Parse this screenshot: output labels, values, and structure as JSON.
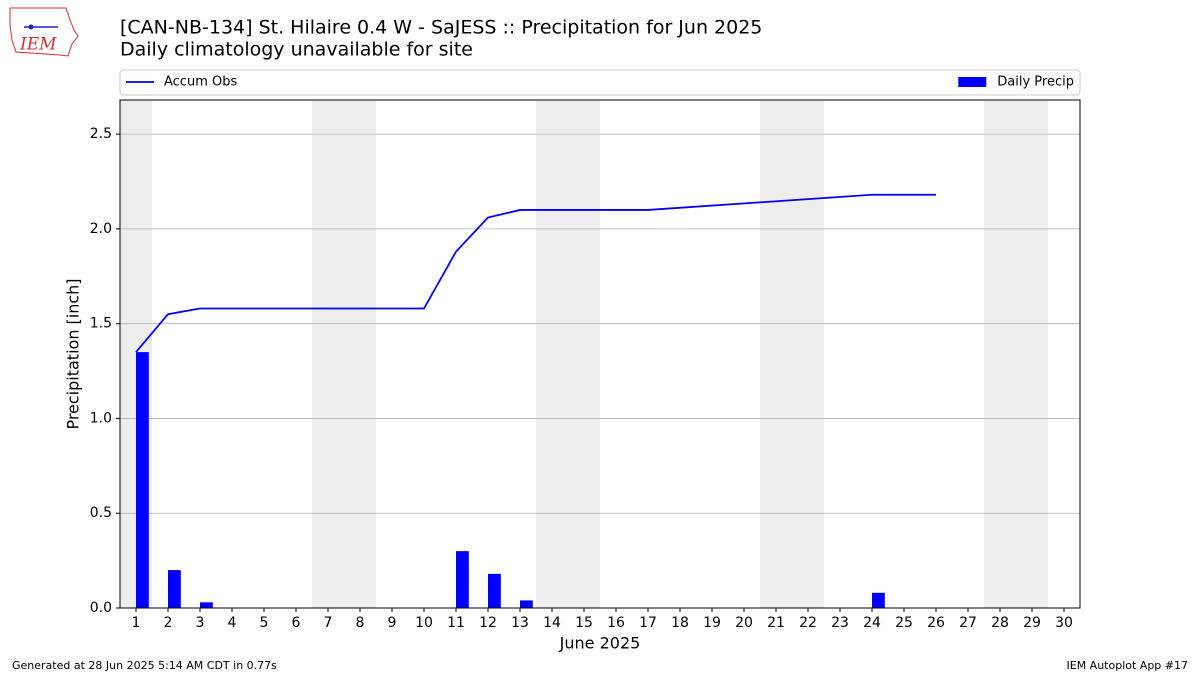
{
  "logo_text": "IEM",
  "footer": {
    "left": "Generated at 28 Jun 2025 5:14 AM CDT in 0.77s",
    "right": "IEM Autoplot App #17"
  },
  "chart_data": {
    "type": "combo",
    "title": "[CAN-NB-134] St. Hilaire 0.4 W - SaJESS :: Precipitation for Jun 2025",
    "subtitle": "Daily climatology unavailable for site",
    "xlabel": "June 2025",
    "ylabel": "Precipitation [inch]",
    "xlim": [
      0.5,
      30.5
    ],
    "xticks": [
      1,
      2,
      3,
      4,
      5,
      6,
      7,
      8,
      9,
      10,
      11,
      12,
      13,
      14,
      15,
      16,
      17,
      18,
      19,
      20,
      21,
      22,
      23,
      24,
      25,
      26,
      27,
      28,
      29,
      30
    ],
    "ylim": [
      0,
      2.68
    ],
    "yticks": [
      {
        "value": 0,
        "label": "0.0"
      },
      0.5,
      {
        "value": 1,
        "label": "1.0"
      },
      1.5,
      {
        "value": 2,
        "label": "2.0"
      },
      2.5
    ],
    "grid": true,
    "shaded_days": [
      1,
      7,
      8,
      14,
      15,
      21,
      22,
      28,
      29
    ],
    "shade_color": "#eeeeee",
    "legend": "top",
    "series": [
      {
        "name": "Accum Obs",
        "type": "line",
        "color": "#0000ff",
        "x": [
          1,
          2,
          3,
          4,
          5,
          6,
          7,
          8,
          9,
          10,
          11,
          12,
          13,
          14,
          15,
          16,
          17,
          24,
          25,
          26
        ],
        "values": [
          1.35,
          1.55,
          1.58,
          1.58,
          1.58,
          1.58,
          1.58,
          1.58,
          1.58,
          1.58,
          1.88,
          2.06,
          2.1,
          2.1,
          2.1,
          2.1,
          2.1,
          2.18,
          2.18,
          2.18
        ]
      },
      {
        "name": "Daily Precip",
        "type": "bar",
        "color": "#0000ff",
        "x": [
          1,
          2,
          3,
          4,
          5,
          6,
          7,
          8,
          9,
          10,
          11,
          12,
          13,
          14,
          15,
          16,
          17,
          24,
          25,
          26
        ],
        "values": [
          1.35,
          0.2,
          0.03,
          0,
          0,
          0,
          0,
          0,
          0,
          0,
          0.3,
          0.18,
          0.04,
          0,
          0,
          0,
          0,
          0.08,
          0,
          0
        ]
      }
    ]
  }
}
